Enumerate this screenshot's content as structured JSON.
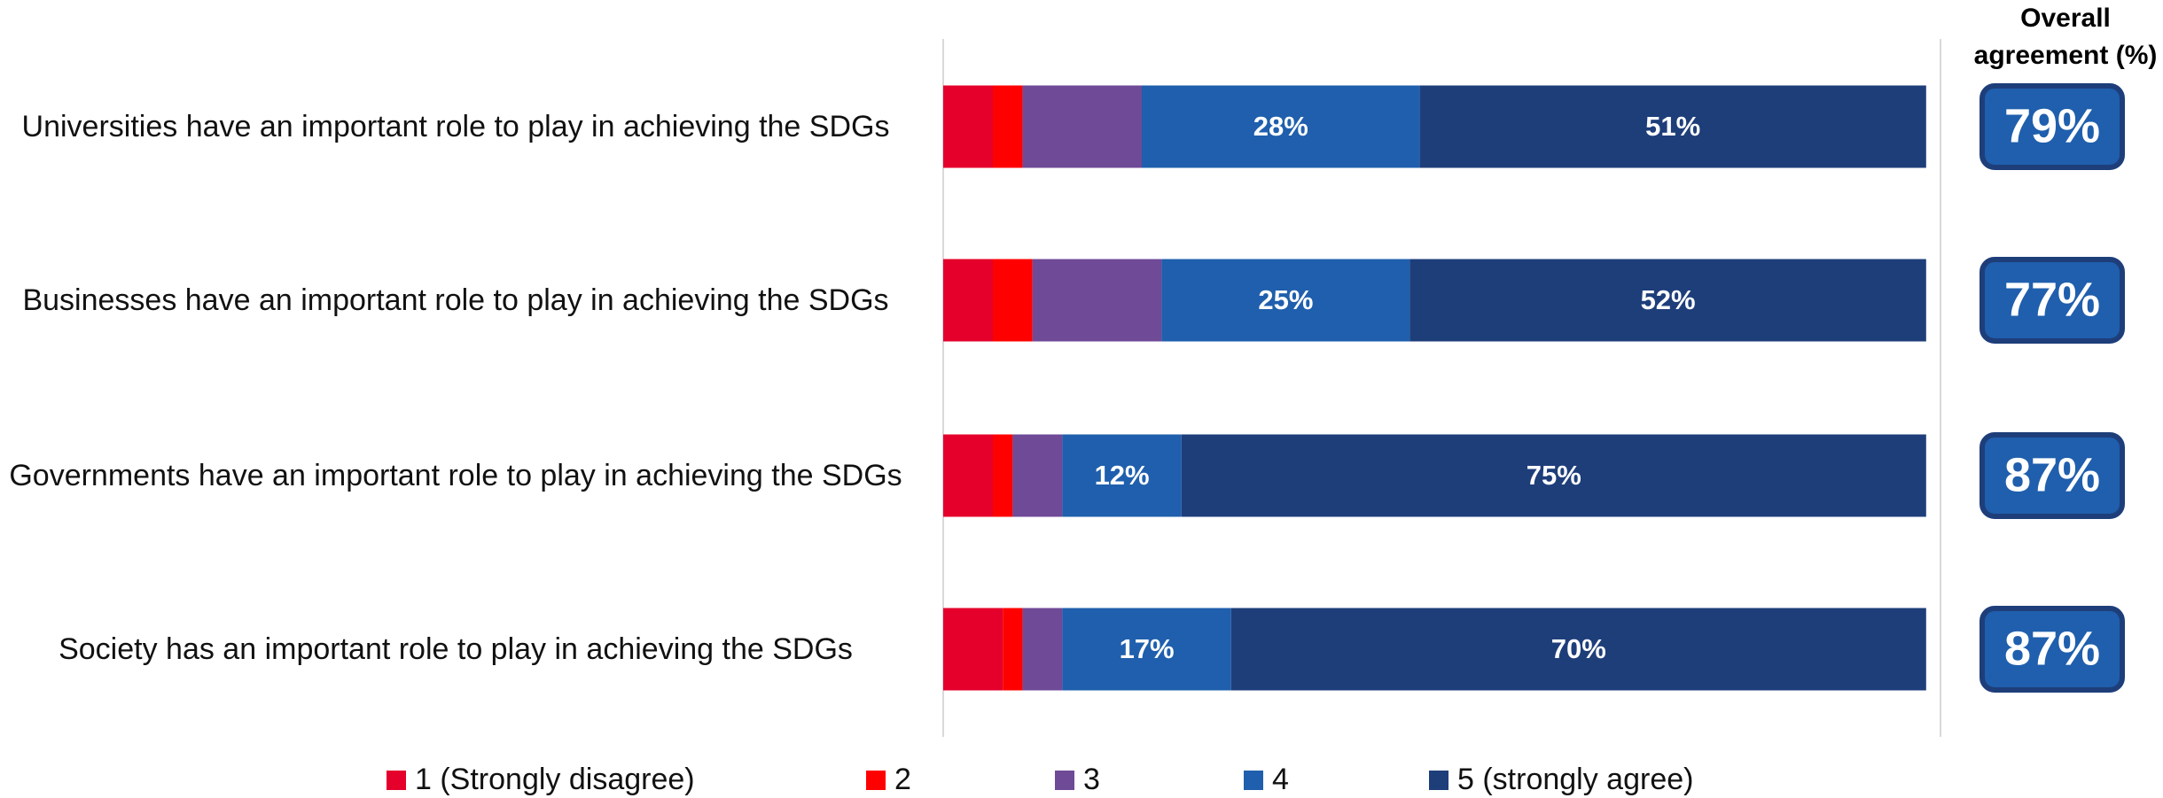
{
  "chart_data": {
    "type": "bar",
    "orientation": "horizontal",
    "stacked": true,
    "categories": [
      "Universities have an important role to play in achieving the SDGs",
      "Businesses have an important role to play in achieving the SDGs",
      "Governments have an important role to play in achieving the SDGs",
      "Society has an important role to play in achieving the SDGs"
    ],
    "series": [
      {
        "name": "1 (Strongly disagree)",
        "color": "#e4002b",
        "values": [
          5,
          5,
          5,
          6
        ]
      },
      {
        "name": "2",
        "color": "#ff0000",
        "values": [
          3,
          4,
          2,
          2
        ]
      },
      {
        "name": "3",
        "color": "#6f4a97",
        "values": [
          12,
          13,
          5,
          4
        ]
      },
      {
        "name": "4",
        "color": "#1f5fad",
        "values": [
          28,
          25,
          12,
          17
        ],
        "value_labels": [
          "28%",
          "25%",
          "12%",
          "17%"
        ]
      },
      {
        "name": "5 (strongly agree)",
        "color": "#1e3e7a",
        "values": [
          51,
          52,
          75,
          70
        ],
        "value_labels": [
          "51%",
          "52%",
          "75%",
          "70%"
        ]
      }
    ],
    "xlim": [
      0,
      100
    ],
    "overall": {
      "title": "Overall agreement (%)",
      "values": [
        79,
        77,
        87,
        87
      ],
      "value_labels": [
        "79%",
        "77%",
        "87%",
        "87%"
      ]
    }
  }
}
